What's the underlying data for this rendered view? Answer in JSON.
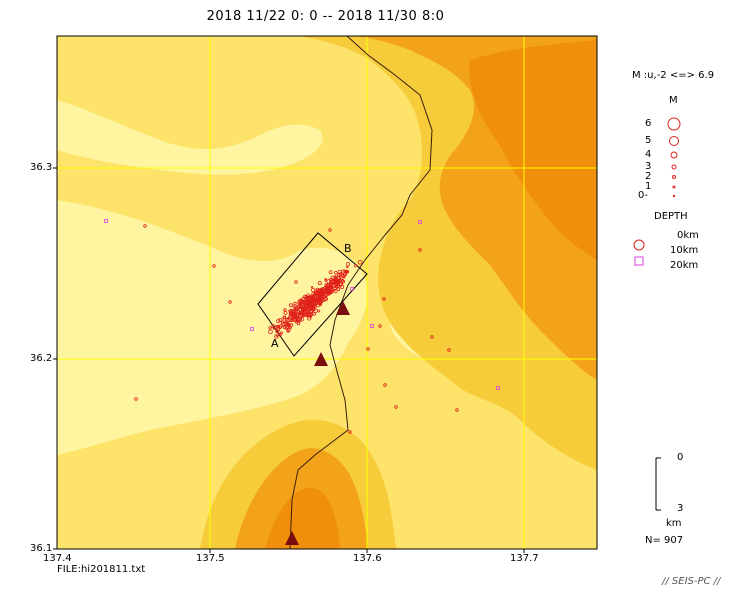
{
  "title": "2018 11/22 0: 0 -- 2018 11/30 8:0",
  "map": {
    "lat_ticks": [
      "36.3",
      "36.2",
      "36.1"
    ],
    "lon_ticks": [
      "137.4",
      "137.5",
      "137.6",
      "137.7"
    ],
    "lon_range": [
      137.4,
      137.75
    ],
    "lat_range": [
      36.1,
      36.37
    ],
    "profile_labels": {
      "start": "A",
      "end": "B"
    },
    "file_label": "FILE:hi201811.txt",
    "colors": {
      "low": "#fff5a0",
      "mid_low": "#fde36a",
      "mid": "#f6cc3a",
      "high": "#f2a31a",
      "peak": "#ef8f0c",
      "event": "#e0221c",
      "deep_event": "#e040e0",
      "volcano": "#7a0d0d",
      "grid": "#ffff00"
    }
  },
  "legend": {
    "mag_range": "M :u,-2 <=> 6.9",
    "mag_title": "M",
    "mag_levels": [
      "6",
      "5",
      "4",
      "3",
      "2",
      "1",
      "0-"
    ],
    "depth_title": "DEPTH",
    "depth_levels": [
      "0km",
      "10km",
      "20km"
    ],
    "scale_top": "0",
    "scale_bottom": "3",
    "scale_unit": "km",
    "count": "N= 907"
  },
  "credit": "// SEIS-PC //"
}
